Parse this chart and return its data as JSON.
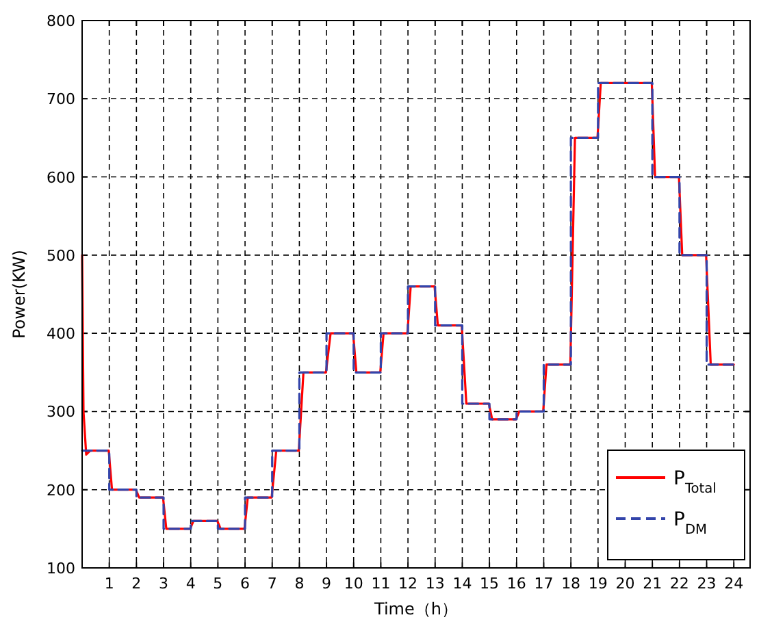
{
  "chart_data": {
    "type": "line",
    "xlabel": "Time（h）",
    "ylabel": "Power(KW)",
    "xlim": [
      0,
      24.6
    ],
    "xticks": [
      1,
      2,
      3,
      4,
      5,
      6,
      7,
      8,
      9,
      10,
      11,
      12,
      13,
      14,
      15,
      16,
      17,
      18,
      19,
      20,
      21,
      22,
      23,
      24
    ],
    "ylim": [
      100,
      800
    ],
    "yticks": [
      100,
      200,
      300,
      400,
      500,
      600,
      700,
      800
    ],
    "grid": true,
    "legend": "bottom right",
    "series": [
      {
        "name": "P$_{Total}$",
        "color": "#ff0000",
        "line_style": "solid",
        "x": [
          0,
          0.05,
          0.15,
          0.3,
          0.98,
          1.1,
          1.98,
          2.1,
          2.98,
          3.1,
          3.98,
          4.1,
          4.98,
          5.1,
          5.98,
          6.1,
          6.98,
          7.15,
          7.98,
          8.15,
          8.98,
          9.15,
          9.98,
          10.1,
          10.98,
          11.1,
          11.98,
          12.1,
          12.98,
          13.1,
          13.98,
          14.15,
          14.98,
          15.1,
          15.98,
          16.1,
          16.98,
          17.1,
          17.98,
          18.15,
          18.98,
          19.1,
          20.98,
          21.1,
          21.98,
          22.1,
          22.98,
          23.15,
          24
        ],
        "values": [
          500,
          300,
          245,
          250,
          250,
          200,
          200,
          190,
          190,
          150,
          150,
          160,
          160,
          150,
          150,
          190,
          190,
          250,
          250,
          350,
          350,
          400,
          400,
          350,
          350,
          400,
          400,
          460,
          460,
          410,
          410,
          310,
          310,
          290,
          290,
          300,
          300,
          360,
          360,
          650,
          650,
          720,
          720,
          600,
          600,
          500,
          500,
          360,
          360
        ]
      },
      {
        "name": "P$_{DM}$",
        "type": "step",
        "color": "#3344aa",
        "line_style": "dashed",
        "x": [
          0,
          1,
          2,
          3,
          4,
          5,
          6,
          7,
          8,
          9,
          10,
          11,
          12,
          13,
          14,
          15,
          16,
          17,
          18,
          19,
          20,
          21,
          22,
          23,
          24
        ],
        "values": [
          250,
          200,
          190,
          150,
          160,
          150,
          190,
          250,
          350,
          400,
          350,
          400,
          460,
          410,
          310,
          290,
          300,
          360,
          650,
          720,
          720,
          600,
          500,
          360,
          360
        ]
      }
    ]
  }
}
